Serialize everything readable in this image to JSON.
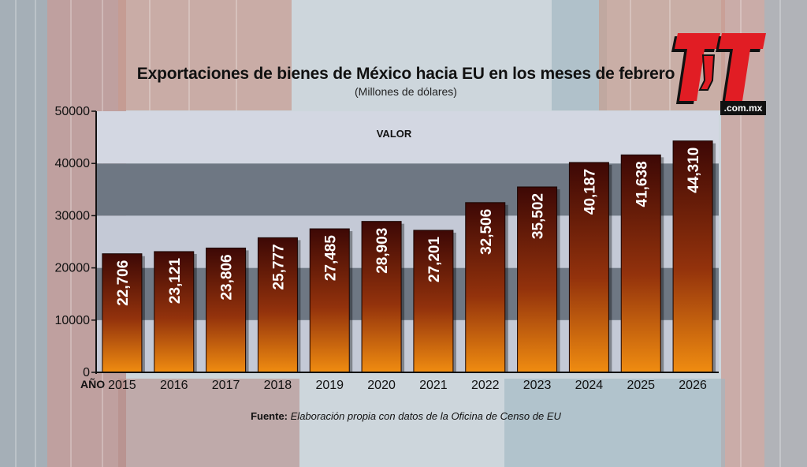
{
  "logo": {
    "text": "TyT",
    "domain": ".com.mx",
    "colors": {
      "red": "#e11d24",
      "black": "#111111"
    }
  },
  "source": {
    "label": "Fuente:",
    "text": "Elaboración propia con datos de la Oficina de Censo de EU"
  },
  "chart_data": {
    "type": "bar",
    "title": "Exportaciones de bienes de México hacia EU en los meses de febrero",
    "subtitle": "(Millones de dólares)",
    "xlabel": "AÑO",
    "ylabel": "",
    "ylim": [
      0,
      50000
    ],
    "yticks": [
      "0",
      "10000",
      "20000",
      "30000",
      "40000",
      "50000"
    ],
    "grid": "alternating horizontal bands",
    "categories": [
      "2015",
      "2016",
      "2017",
      "2018",
      "2019",
      "2020",
      "2021",
      "2022",
      "2023",
      "2024",
      "2025",
      "2026"
    ],
    "series": [
      {
        "name": "VALOR",
        "values": [
          22706,
          23121,
          23806,
          25777,
          27485,
          28903,
          27201,
          32506,
          35502,
          40187,
          41638,
          44310
        ],
        "labels": [
          "22,706",
          "23,121",
          "23,806",
          "25,777",
          "27,485",
          "28,903",
          "27,201",
          "32,506",
          "35,502",
          "40,187",
          "41,638",
          "44,310"
        ]
      }
    ],
    "colors": {
      "bar_top": "#3d0805",
      "bar_bottom": "#f08c10",
      "band_dark": "#6e7783",
      "band_light": "#c4c9d6",
      "band_top": "#d3d7e2"
    }
  }
}
